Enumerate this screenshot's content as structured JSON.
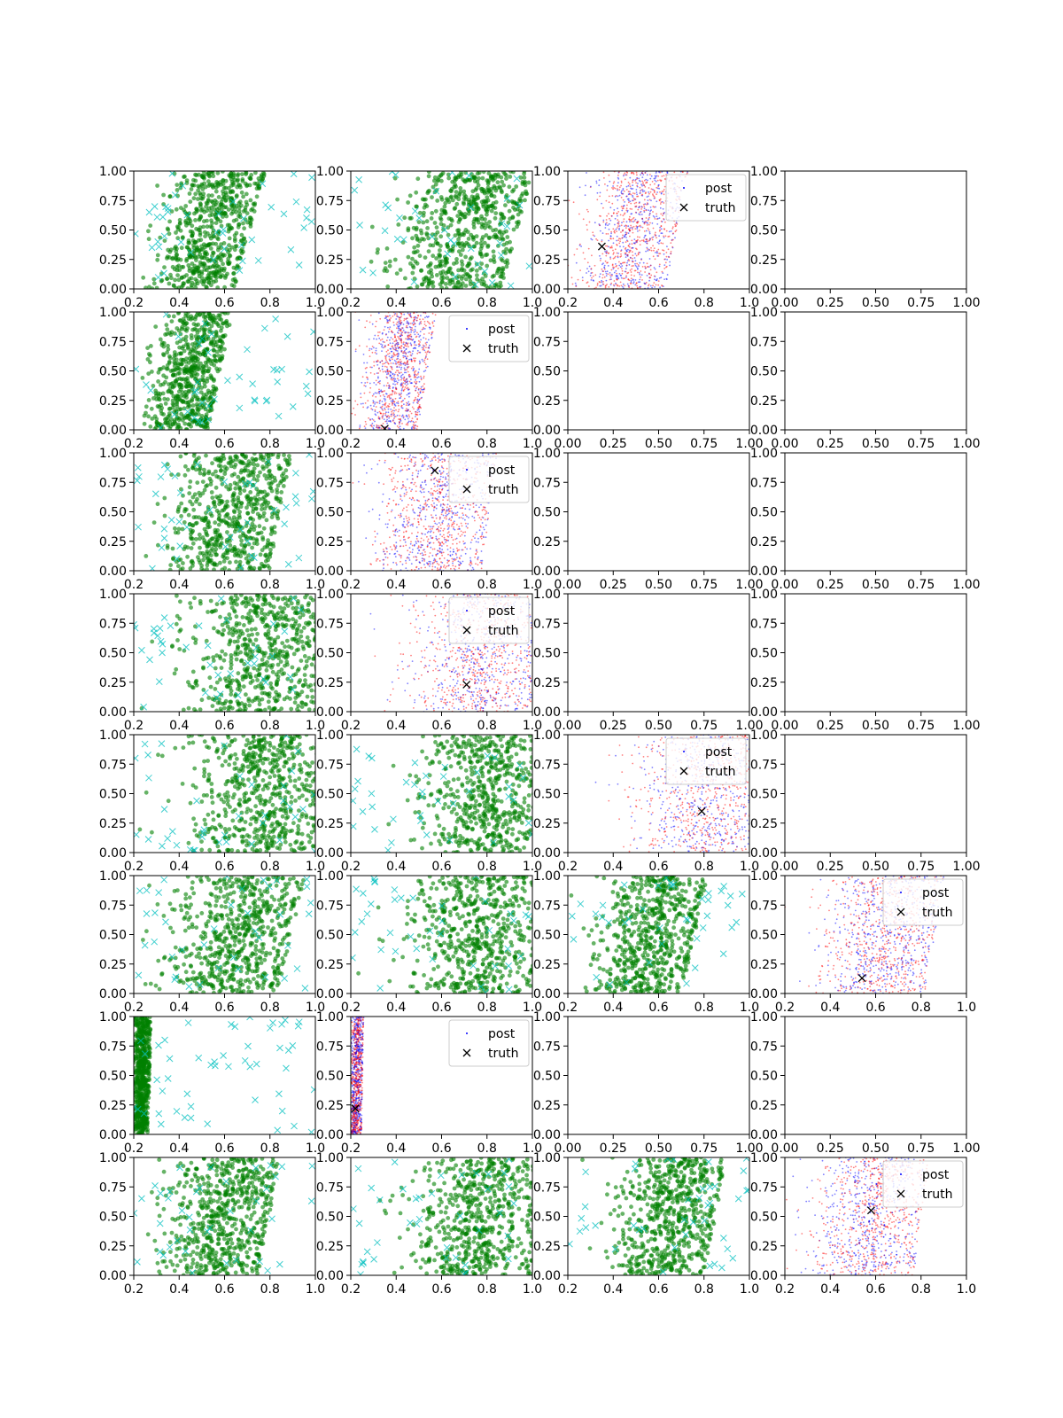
{
  "figure": {
    "rows": 8,
    "cols": 4,
    "background": "#ffffff"
  },
  "colors": {
    "samples": "#008000",
    "prior": "#00bfbf",
    "post_a": "#0000ff",
    "post_b": "#ff0000",
    "truth": "#000000",
    "axes": "#000000"
  },
  "legend": {
    "post_label": "post",
    "truth_label": "truth"
  },
  "chart_data": [
    {
      "row": 0,
      "col": 0,
      "type": "scatter",
      "kind": "samples",
      "xlim": [
        0.2,
        1.0
      ],
      "ylim": [
        0.0,
        1.0
      ],
      "xticks": [
        "0.2",
        "0.4",
        "0.6",
        "0.8",
        "1.0"
      ],
      "yticks": [
        "0.00",
        "0.25",
        "0.50",
        "0.75",
        "1.00"
      ],
      "band": [
        [
          0.48,
          0.18
        ],
        [
          0.6,
          0.2
        ]
      ],
      "n_prior": 45
    },
    {
      "row": 0,
      "col": 1,
      "type": "scatter",
      "kind": "samples",
      "xlim": [
        0.2,
        1.0
      ],
      "ylim": [
        0.0,
        1.0
      ],
      "xticks": [
        "0.2",
        "0.4",
        "0.6",
        "0.8",
        "1.0"
      ],
      "yticks": [
        "0.00",
        "0.25",
        "0.50",
        "0.75",
        "1.00"
      ],
      "band": [
        [
          0.63,
          0.26
        ],
        [
          0.78,
          0.25
        ]
      ],
      "n_prior": 40
    },
    {
      "row": 0,
      "col": 2,
      "type": "scatter",
      "kind": "posterior",
      "xlim": [
        0.2,
        1.0
      ],
      "ylim": [
        0.0,
        1.0
      ],
      "xticks": [
        "0.2",
        "0.4",
        "0.6",
        "0.8",
        "1.0"
      ],
      "yticks": [
        "0.00",
        "0.25",
        "0.50",
        "0.75",
        "1.00"
      ],
      "band": [
        [
          0.45,
          0.2
        ],
        [
          0.54,
          0.21
        ]
      ],
      "truth": [
        0.35,
        0.36
      ],
      "legend": "upper right"
    },
    {
      "row": 0,
      "col": 3,
      "type": "scatter",
      "kind": "empty",
      "xlim": [
        0.0,
        1.0
      ],
      "ylim": [
        0.0,
        1.0
      ],
      "xticks": [
        "0.00",
        "0.25",
        "0.50",
        "0.75",
        "1.00"
      ],
      "yticks": [
        "0.00",
        "0.25",
        "0.50",
        "0.75",
        "1.00"
      ]
    },
    {
      "row": 1,
      "col": 0,
      "type": "scatter",
      "kind": "samples",
      "xlim": [
        0.2,
        1.0
      ],
      "ylim": [
        0.0,
        1.0
      ],
      "xticks": [
        "0.2",
        "0.4",
        "0.6",
        "0.8",
        "1.0"
      ],
      "yticks": [
        "0.00",
        "0.25",
        "0.50",
        "0.75",
        "1.00"
      ],
      "band": [
        [
          0.4,
          0.14
        ],
        [
          0.5,
          0.15
        ]
      ],
      "n_prior": 45
    },
    {
      "row": 1,
      "col": 1,
      "type": "scatter",
      "kind": "posterior",
      "xlim": [
        0.2,
        1.0
      ],
      "ylim": [
        0.0,
        1.0
      ],
      "xticks": [
        "0.2",
        "0.4",
        "0.6",
        "0.8",
        "1.0"
      ],
      "yticks": [
        "0.00",
        "0.25",
        "0.50",
        "0.75",
        "1.00"
      ],
      "band": [
        [
          0.37,
          0.14
        ],
        [
          0.45,
          0.14
        ]
      ],
      "truth": [
        0.35,
        0.01
      ],
      "legend": "upper right"
    },
    {
      "row": 1,
      "col": 2,
      "type": "scatter",
      "kind": "empty",
      "xlim": [
        0.0,
        1.0
      ],
      "ylim": [
        0.0,
        1.0
      ],
      "xticks": [
        "0.00",
        "0.25",
        "0.50",
        "0.75",
        "1.00"
      ],
      "yticks": [
        "0.00",
        "0.25",
        "0.50",
        "0.75",
        "1.00"
      ]
    },
    {
      "row": 1,
      "col": 3,
      "type": "scatter",
      "kind": "empty",
      "xlim": [
        0.0,
        1.0
      ],
      "ylim": [
        0.0,
        1.0
      ],
      "xticks": [
        "0.00",
        "0.25",
        "0.50",
        "0.75",
        "1.00"
      ],
      "yticks": [
        "0.00",
        "0.25",
        "0.50",
        "0.75",
        "1.00"
      ]
    },
    {
      "row": 2,
      "col": 0,
      "type": "scatter",
      "kind": "samples",
      "xlim": [
        0.2,
        1.0
      ],
      "ylim": [
        0.0,
        1.0
      ],
      "xticks": [
        "0.2",
        "0.4",
        "0.6",
        "0.8",
        "1.0"
      ],
      "yticks": [
        "0.00",
        "0.25",
        "0.50",
        "0.75",
        "1.00"
      ],
      "band": [
        [
          0.58,
          0.24
        ],
        [
          0.68,
          0.24
        ]
      ],
      "n_prior": 45
    },
    {
      "row": 2,
      "col": 1,
      "type": "scatter",
      "kind": "posterior",
      "xlim": [
        0.2,
        1.0
      ],
      "ylim": [
        0.0,
        1.0
      ],
      "xticks": [
        "0.2",
        "0.4",
        "0.6",
        "0.8",
        "1.0"
      ],
      "yticks": [
        "0.00",
        "0.25",
        "0.50",
        "0.75",
        "1.00"
      ],
      "band": [
        [
          0.56,
          0.24
        ],
        [
          0.62,
          0.25
        ]
      ],
      "truth": [
        0.57,
        0.85
      ],
      "legend": "upper right"
    },
    {
      "row": 2,
      "col": 2,
      "type": "scatter",
      "kind": "empty",
      "xlim": [
        0.0,
        1.0
      ],
      "ylim": [
        0.0,
        1.0
      ],
      "xticks": [
        "0.00",
        "0.25",
        "0.50",
        "0.75",
        "1.00"
      ],
      "yticks": [
        "0.00",
        "0.25",
        "0.50",
        "0.75",
        "1.00"
      ]
    },
    {
      "row": 2,
      "col": 3,
      "type": "scatter",
      "kind": "empty",
      "xlim": [
        0.0,
        1.0
      ],
      "ylim": [
        0.0,
        1.0
      ],
      "xticks": [
        "0.00",
        "0.25",
        "0.50",
        "0.75",
        "1.00"
      ],
      "yticks": [
        "0.00",
        "0.25",
        "0.50",
        "0.75",
        "1.00"
      ]
    },
    {
      "row": 3,
      "col": 0,
      "type": "scatter",
      "kind": "samples",
      "xlim": [
        0.2,
        1.0
      ],
      "ylim": [
        0.0,
        1.0
      ],
      "xticks": [
        "0.2",
        "0.4",
        "0.6",
        "0.8",
        "1.0"
      ],
      "yticks": [
        "0.00",
        "0.25",
        "0.50",
        "0.75",
        "1.00"
      ],
      "band": [
        [
          0.74,
          0.3
        ],
        [
          0.8,
          0.28
        ]
      ],
      "n_prior": 40
    },
    {
      "row": 3,
      "col": 1,
      "type": "scatter",
      "kind": "posterior",
      "xlim": [
        0.2,
        1.0
      ],
      "ylim": [
        0.0,
        1.0
      ],
      "xticks": [
        "0.2",
        "0.4",
        "0.6",
        "0.8",
        "1.0"
      ],
      "yticks": [
        "0.00",
        "0.25",
        "0.50",
        "0.75",
        "1.00"
      ],
      "band": [
        [
          0.74,
          0.28
        ],
        [
          0.8,
          0.27
        ]
      ],
      "truth": [
        0.71,
        0.23
      ],
      "legend": "upper right"
    },
    {
      "row": 3,
      "col": 2,
      "type": "scatter",
      "kind": "empty",
      "xlim": [
        0.0,
        1.0
      ],
      "ylim": [
        0.0,
        1.0
      ],
      "xticks": [
        "0.00",
        "0.25",
        "0.50",
        "0.75",
        "1.00"
      ],
      "yticks": [
        "0.00",
        "0.25",
        "0.50",
        "0.75",
        "1.00"
      ]
    },
    {
      "row": 3,
      "col": 3,
      "type": "scatter",
      "kind": "empty",
      "xlim": [
        0.0,
        1.0
      ],
      "ylim": [
        0.0,
        1.0
      ],
      "xticks": [
        "0.00",
        "0.25",
        "0.50",
        "0.75",
        "1.00"
      ],
      "yticks": [
        "0.00",
        "0.25",
        "0.50",
        "0.75",
        "1.00"
      ]
    },
    {
      "row": 4,
      "col": 0,
      "type": "scatter",
      "kind": "samples",
      "xlim": [
        0.2,
        1.0
      ],
      "ylim": [
        0.0,
        1.0
      ],
      "xticks": [
        "0.2",
        "0.4",
        "0.6",
        "0.8",
        "1.0"
      ],
      "yticks": [
        "0.00",
        "0.25",
        "0.50",
        "0.75",
        "1.00"
      ],
      "band": [
        [
          0.76,
          0.3
        ],
        [
          0.78,
          0.3
        ]
      ],
      "n_prior": 40
    },
    {
      "row": 4,
      "col": 1,
      "type": "scatter",
      "kind": "samples",
      "xlim": [
        0.2,
        1.0
      ],
      "ylim": [
        0.0,
        1.0
      ],
      "xticks": [
        "0.2",
        "0.4",
        "0.6",
        "0.8",
        "1.0"
      ],
      "yticks": [
        "0.00",
        "0.25",
        "0.50",
        "0.75",
        "1.00"
      ],
      "band": [
        [
          0.8,
          0.3
        ],
        [
          0.82,
          0.3
        ]
      ],
      "n_prior": 40
    },
    {
      "row": 4,
      "col": 2,
      "type": "scatter",
      "kind": "posterior",
      "xlim": [
        0.2,
        1.0
      ],
      "ylim": [
        0.0,
        1.0
      ],
      "xticks": [
        "0.2",
        "0.4",
        "0.6",
        "0.8",
        "1.0"
      ],
      "yticks": [
        "0.00",
        "0.25",
        "0.50",
        "0.75",
        "1.00"
      ],
      "band": [
        [
          0.82,
          0.3
        ],
        [
          0.84,
          0.3
        ]
      ],
      "truth": [
        0.79,
        0.35
      ],
      "legend": "upper right"
    },
    {
      "row": 4,
      "col": 3,
      "type": "scatter",
      "kind": "empty",
      "xlim": [
        0.0,
        1.0
      ],
      "ylim": [
        0.0,
        1.0
      ],
      "xticks": [
        "0.00",
        "0.25",
        "0.50",
        "0.75",
        "1.00"
      ],
      "yticks": [
        "0.00",
        "0.25",
        "0.50",
        "0.75",
        "1.00"
      ]
    },
    {
      "row": 5,
      "col": 0,
      "type": "scatter",
      "kind": "samples",
      "xlim": [
        0.2,
        1.0
      ],
      "ylim": [
        0.0,
        1.0
      ],
      "xticks": [
        "0.2",
        "0.4",
        "0.6",
        "0.8",
        "1.0"
      ],
      "yticks": [
        "0.00",
        "0.25",
        "0.50",
        "0.75",
        "1.00"
      ],
      "band": [
        [
          0.6,
          0.26
        ],
        [
          0.72,
          0.26
        ]
      ],
      "n_prior": 40
    },
    {
      "row": 5,
      "col": 1,
      "type": "scatter",
      "kind": "samples",
      "xlim": [
        0.2,
        1.0
      ],
      "ylim": [
        0.0,
        1.0
      ],
      "xticks": [
        "0.2",
        "0.4",
        "0.6",
        "0.8",
        "1.0"
      ],
      "yticks": [
        "0.00",
        "0.25",
        "0.50",
        "0.75",
        "1.00"
      ],
      "band": [
        [
          0.76,
          0.3
        ],
        [
          0.8,
          0.3
        ]
      ],
      "n_prior": 40
    },
    {
      "row": 5,
      "col": 2,
      "type": "scatter",
      "kind": "samples",
      "xlim": [
        0.2,
        1.0
      ],
      "ylim": [
        0.0,
        1.0
      ],
      "xticks": [
        "0.2",
        "0.4",
        "0.6",
        "0.8",
        "1.0"
      ],
      "yticks": [
        "0.00",
        "0.25",
        "0.50",
        "0.75",
        "1.00"
      ],
      "band": [
        [
          0.52,
          0.2
        ],
        [
          0.62,
          0.22
        ]
      ],
      "n_prior": 40
    },
    {
      "row": 5,
      "col": 3,
      "type": "scatter",
      "kind": "posterior",
      "xlim": [
        0.2,
        1.0
      ],
      "ylim": [
        0.0,
        1.0
      ],
      "xticks": [
        "0.2",
        "0.4",
        "0.6",
        "0.8",
        "1.0"
      ],
      "yticks": [
        "0.00",
        "0.25",
        "0.50",
        "0.75",
        "1.00"
      ],
      "band": [
        [
          0.6,
          0.24
        ],
        [
          0.68,
          0.25
        ]
      ],
      "truth": [
        0.54,
        0.13
      ],
      "legend": "upper right"
    },
    {
      "row": 6,
      "col": 0,
      "type": "scatter",
      "kind": "samples",
      "xlim": [
        0.2,
        1.0
      ],
      "ylim": [
        0.0,
        1.0
      ],
      "xticks": [
        "0.2",
        "0.4",
        "0.6",
        "0.8",
        "1.0"
      ],
      "yticks": [
        "0.00",
        "0.25",
        "0.50",
        "0.75",
        "1.00"
      ],
      "band": [
        [
          0.23,
          0.035
        ],
        [
          0.24,
          0.04
        ]
      ],
      "n_prior": 50
    },
    {
      "row": 6,
      "col": 1,
      "type": "scatter",
      "kind": "posterior",
      "xlim": [
        0.2,
        1.0
      ],
      "ylim": [
        0.0,
        1.0
      ],
      "xticks": [
        "0.2",
        "0.4",
        "0.6",
        "0.8",
        "1.0"
      ],
      "yticks": [
        "0.00",
        "0.25",
        "0.50",
        "0.75",
        "1.00"
      ],
      "band": [
        [
          0.22,
          0.03
        ],
        [
          0.23,
          0.03
        ]
      ],
      "truth": [
        0.22,
        0.22
      ],
      "legend": "upper right"
    },
    {
      "row": 6,
      "col": 2,
      "type": "scatter",
      "kind": "empty",
      "xlim": [
        0.0,
        1.0
      ],
      "ylim": [
        0.0,
        1.0
      ],
      "xticks": [
        "0.00",
        "0.25",
        "0.50",
        "0.75",
        "1.00"
      ],
      "yticks": [
        "0.00",
        "0.25",
        "0.50",
        "0.75",
        "1.00"
      ]
    },
    {
      "row": 6,
      "col": 3,
      "type": "scatter",
      "kind": "empty",
      "xlim": [
        0.0,
        1.0
      ],
      "ylim": [
        0.0,
        1.0
      ],
      "xticks": [
        "0.00",
        "0.25",
        "0.50",
        "0.75",
        "1.00"
      ],
      "yticks": [
        "0.00",
        "0.25",
        "0.50",
        "0.75",
        "1.00"
      ]
    },
    {
      "row": 7,
      "col": 0,
      "type": "scatter",
      "kind": "samples",
      "xlim": [
        0.2,
        1.0
      ],
      "ylim": [
        0.0,
        1.0
      ],
      "xticks": [
        "0.2",
        "0.4",
        "0.6",
        "0.8",
        "1.0"
      ],
      "yticks": [
        "0.00",
        "0.25",
        "0.50",
        "0.75",
        "1.00"
      ],
      "band": [
        [
          0.55,
          0.22
        ],
        [
          0.64,
          0.23
        ]
      ],
      "n_prior": 40
    },
    {
      "row": 7,
      "col": 1,
      "type": "scatter",
      "kind": "samples",
      "xlim": [
        0.2,
        1.0
      ],
      "ylim": [
        0.0,
        1.0
      ],
      "xticks": [
        "0.2",
        "0.4",
        "0.6",
        "0.8",
        "1.0"
      ],
      "yticks": [
        "0.00",
        "0.25",
        "0.50",
        "0.75",
        "1.00"
      ],
      "band": [
        [
          0.74,
          0.28
        ],
        [
          0.8,
          0.27
        ]
      ],
      "n_prior": 40
    },
    {
      "row": 7,
      "col": 2,
      "type": "scatter",
      "kind": "samples",
      "xlim": [
        0.2,
        1.0
      ],
      "ylim": [
        0.0,
        1.0
      ],
      "xticks": [
        "0.2",
        "0.4",
        "0.6",
        "0.8",
        "1.0"
      ],
      "yticks": [
        "0.00",
        "0.25",
        "0.50",
        "0.75",
        "1.00"
      ],
      "band": [
        [
          0.6,
          0.22
        ],
        [
          0.7,
          0.23
        ]
      ],
      "n_prior": 40
    },
    {
      "row": 7,
      "col": 3,
      "type": "scatter",
      "kind": "posterior",
      "xlim": [
        0.2,
        1.0
      ],
      "ylim": [
        0.0,
        1.0
      ],
      "xticks": [
        "0.2",
        "0.4",
        "0.6",
        "0.8",
        "1.0"
      ],
      "yticks": [
        "0.00",
        "0.25",
        "0.50",
        "0.75",
        "1.00"
      ],
      "band": [
        [
          0.56,
          0.23
        ],
        [
          0.62,
          0.24
        ]
      ],
      "truth": [
        0.58,
        0.55
      ],
      "legend": "upper right"
    }
  ]
}
